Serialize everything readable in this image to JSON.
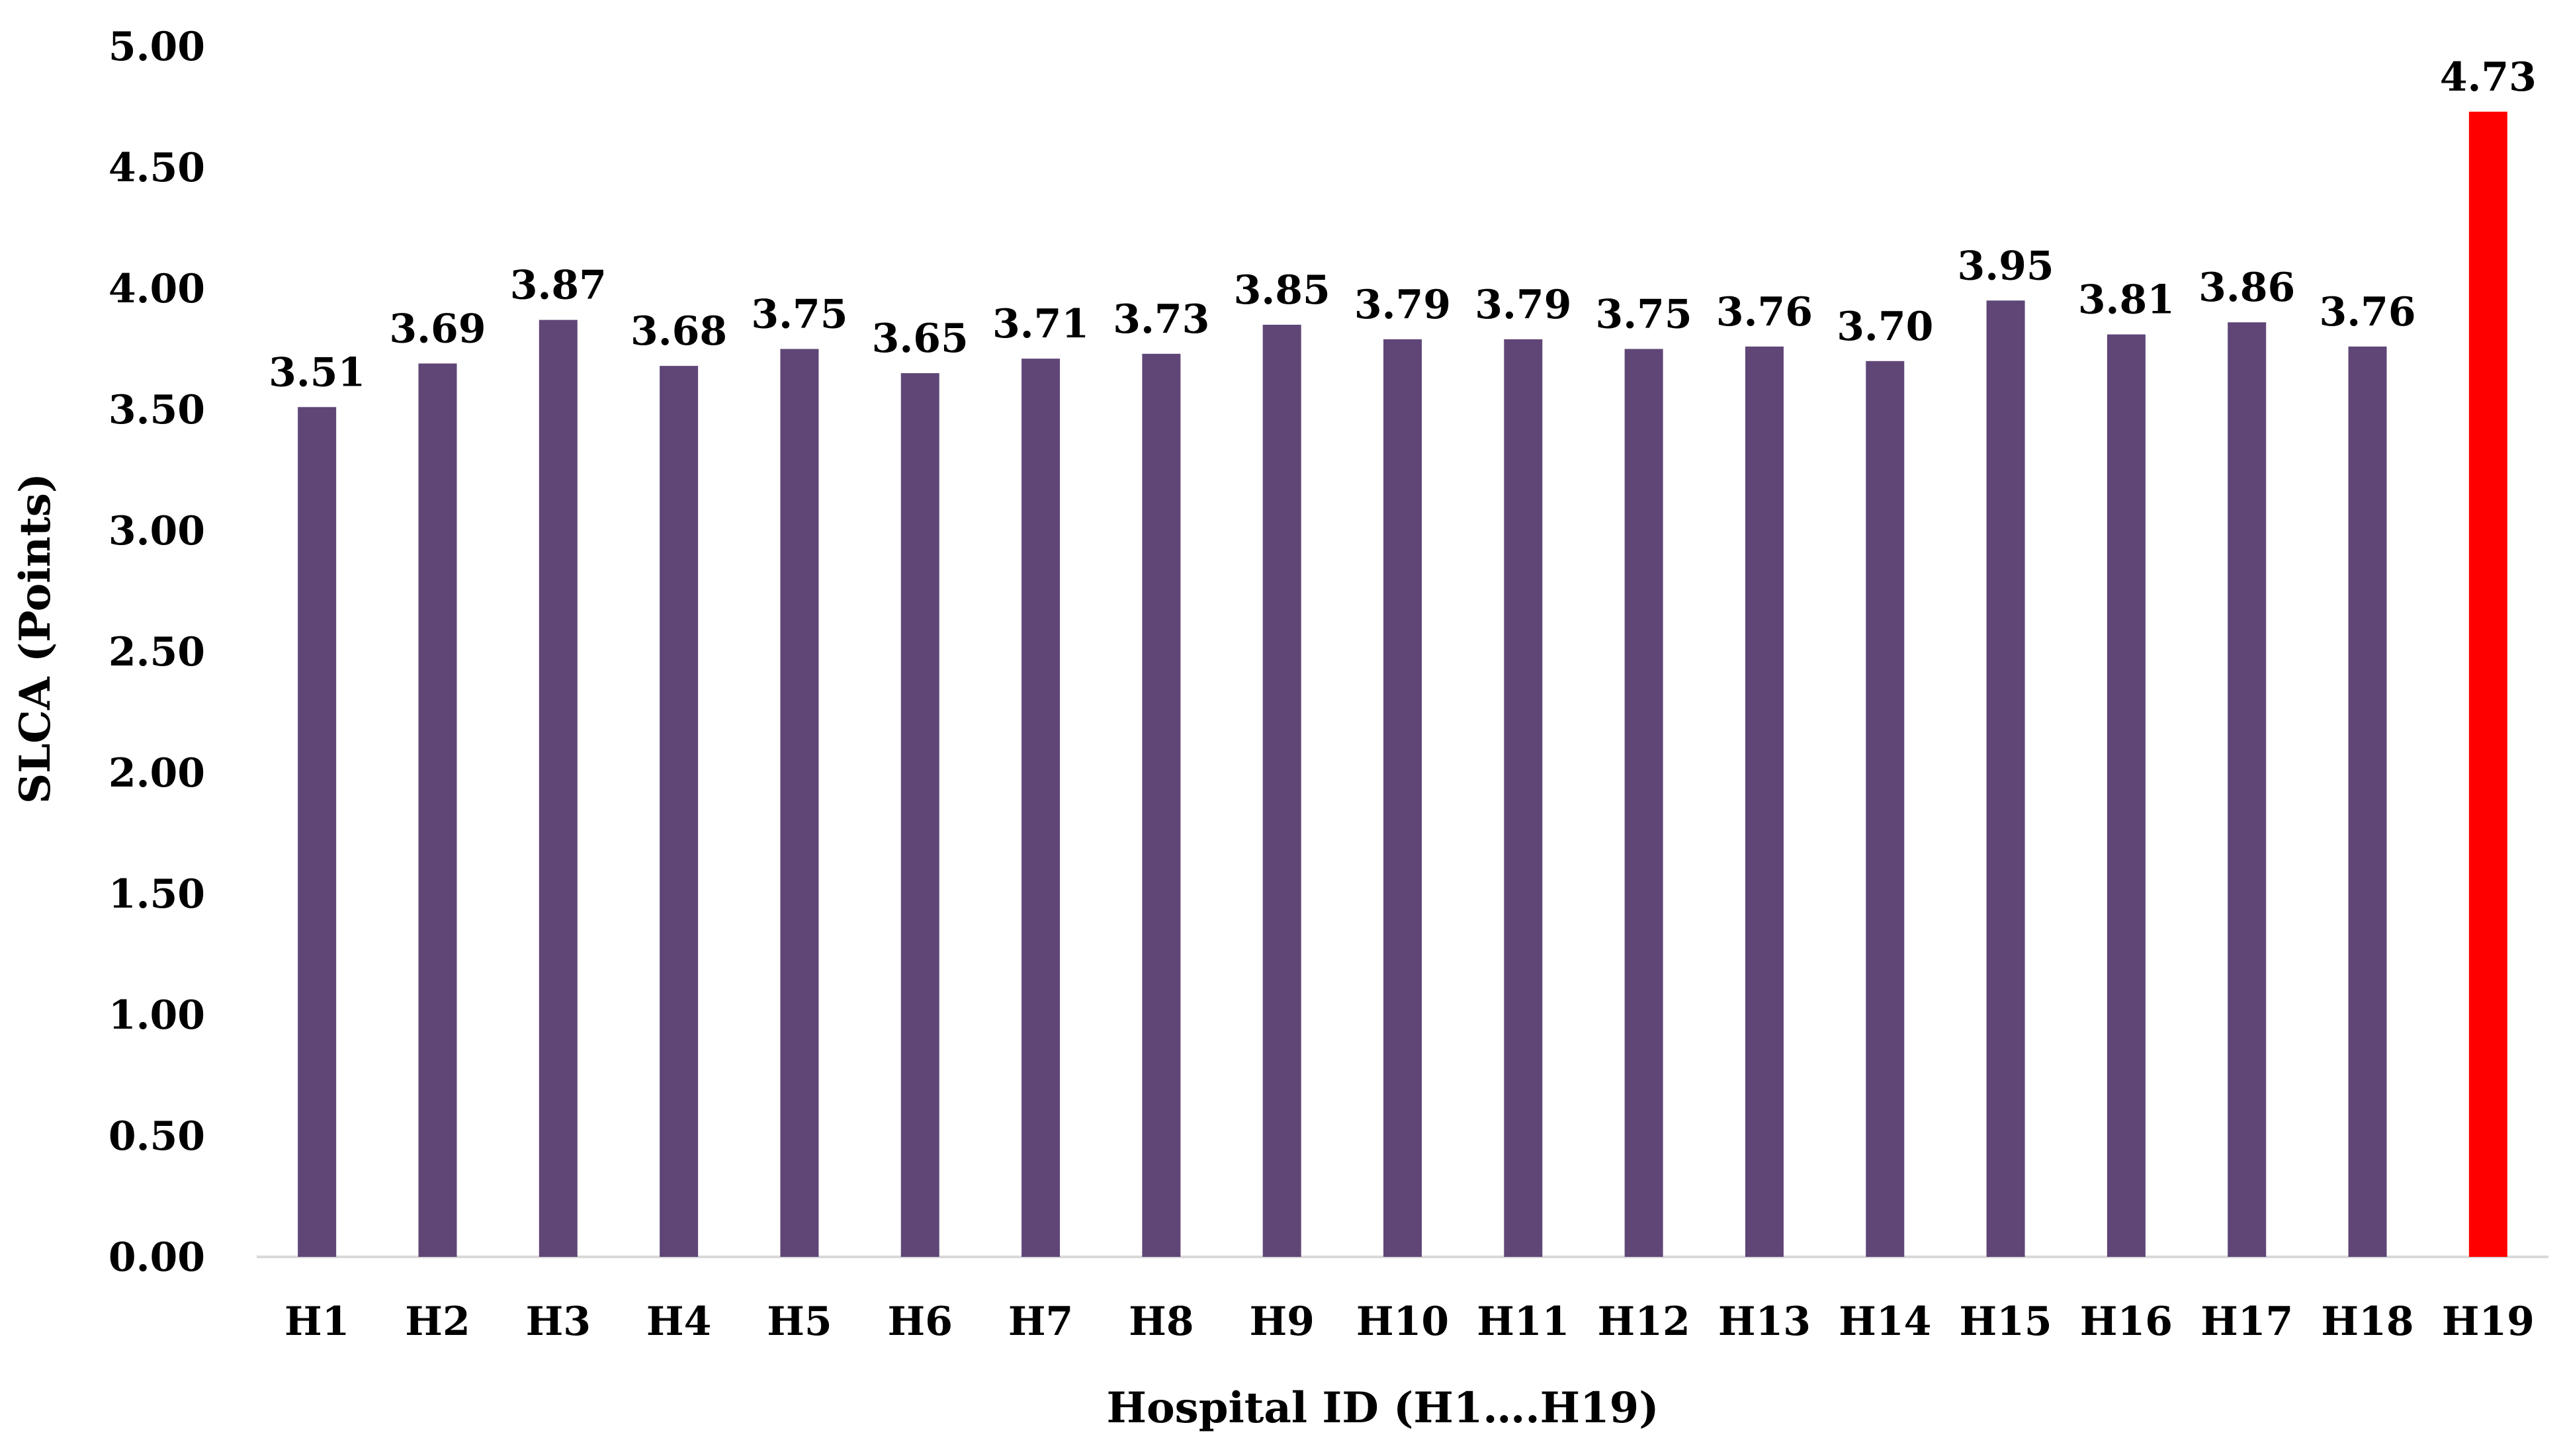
{
  "chart_data": {
    "type": "bar",
    "categories": [
      "H1",
      "H2",
      "H3",
      "H4",
      "H5",
      "H6",
      "H7",
      "H8",
      "H9",
      "H10",
      "H11",
      "H12",
      "H13",
      "H14",
      "H15",
      "H16",
      "H17",
      "H18",
      "H19"
    ],
    "values": [
      3.51,
      3.69,
      3.87,
      3.68,
      3.75,
      3.65,
      3.71,
      3.73,
      3.85,
      3.79,
      3.79,
      3.75,
      3.76,
      3.7,
      3.95,
      3.81,
      3.86,
      3.76,
      4.73
    ],
    "value_labels": [
      "3.51",
      "3.69",
      "3.87",
      "3.68",
      "3.75",
      "3.65",
      "3.71",
      "3.73",
      "3.85",
      "3.79",
      "3.79",
      "3.75",
      "3.76",
      "3.70",
      "3.95",
      "3.81",
      "3.86",
      "3.76",
      "4.73"
    ],
    "highlight_category": "H19",
    "title": "",
    "xlabel": "Hospital ID (H1….H19)",
    "ylabel": "SLCA (Points)",
    "ylim": [
      0,
      5
    ],
    "yticks": [
      "0.00",
      "0.50",
      "1.00",
      "1.50",
      "2.00",
      "2.50",
      "3.00",
      "3.50",
      "4.00",
      "4.50",
      "5.00"
    ],
    "grid": false,
    "legend": "none",
    "colors": {
      "bar": "#604677",
      "highlight": "#ff0000",
      "axis": "#d9d9d9",
      "text": "#000000"
    }
  }
}
